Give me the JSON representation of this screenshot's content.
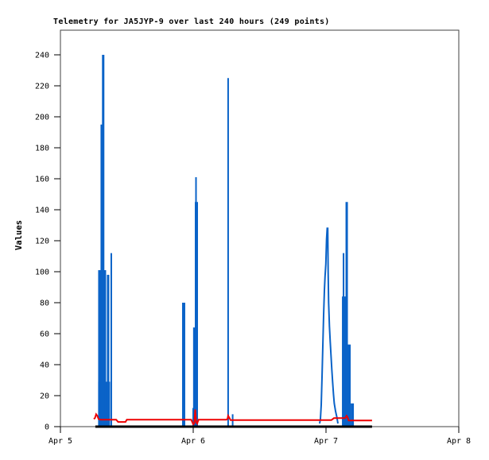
{
  "title": "Telemetry for JA5JYP-9 over last 240 hours (249 points)",
  "chart_data": {
    "type": "line",
    "subtype": "gnuplot-telemetry-impulses-and-lines",
    "title": "Telemetry for JA5JYP-9 over last 240 hours (249 points)",
    "xlabel": "",
    "ylabel": "Values",
    "grid": false,
    "legend_position": "none",
    "colors": {
      "impulse_blue": "#0a63c8",
      "line_red": "#ee0000",
      "line_black": "#000000",
      "border": "#404040",
      "text": "#000000",
      "background": "#ffffff"
    },
    "x_axis": {
      "tick_labels": [
        "Apr 5",
        "Apr 6",
        "Apr 7",
        "Apr 8"
      ],
      "tick_days": [
        0,
        1,
        2,
        3
      ],
      "range_days": [
        0,
        3
      ]
    },
    "y_axis": {
      "ticks": [
        0,
        20,
        40,
        60,
        80,
        100,
        120,
        140,
        160,
        180,
        200,
        220,
        240
      ],
      "range": [
        0,
        255
      ]
    },
    "series": [
      {
        "name": "blue-impulse-bars",
        "style": "impulses",
        "color_key": "impulse_blue",
        "comment": "bars as [days_after_Apr5, value, width_px]",
        "bars": [
          [
            0.329,
            29,
            15
          ],
          [
            0.314,
            101,
            10
          ],
          [
            0.314,
            195,
            4
          ],
          [
            0.322,
            240,
            3
          ],
          [
            0.359,
            98,
            3
          ],
          [
            0.383,
            112,
            2
          ],
          [
            0.928,
            80,
            4
          ],
          [
            1.017,
            64,
            6
          ],
          [
            1.024,
            145,
            4
          ],
          [
            1.021,
            161,
            2
          ],
          [
            1.0,
            12,
            2
          ],
          [
            1.263,
            225,
            2
          ],
          [
            1.297,
            8,
            2
          ],
          [
            2.138,
            84,
            6
          ],
          [
            2.132,
            112,
            2
          ],
          [
            2.156,
            145,
            3
          ],
          [
            2.171,
            53,
            5
          ],
          [
            2.198,
            15,
            4
          ]
        ]
      },
      {
        "name": "blue-peak-line",
        "style": "line",
        "color_key": "impulse_blue",
        "stroke_width": 2,
        "points": [
          [
            1.952,
            2
          ],
          [
            1.958,
            5
          ],
          [
            1.964,
            14
          ],
          [
            1.97,
            32
          ],
          [
            1.976,
            52
          ],
          [
            1.982,
            72
          ],
          [
            1.988,
            88
          ],
          [
            1.993,
            97
          ],
          [
            1.999,
            105
          ],
          [
            2.004,
            121
          ],
          [
            2.009,
            128
          ],
          [
            2.013,
            128
          ],
          [
            2.016,
            100
          ],
          [
            2.02,
            80
          ],
          [
            2.026,
            65
          ],
          [
            2.032,
            55
          ],
          [
            2.038,
            46
          ],
          [
            2.044,
            37
          ],
          [
            2.05,
            29
          ],
          [
            2.056,
            21
          ],
          [
            2.062,
            15
          ],
          [
            2.072,
            10
          ],
          [
            2.082,
            6
          ],
          [
            2.09,
            2
          ]
        ]
      },
      {
        "name": "red-channel-line",
        "style": "line",
        "color_key": "line_red",
        "stroke_width": 2,
        "points": [
          [
            0.251,
            5
          ],
          [
            0.26,
            5.5
          ],
          [
            0.269,
            8
          ],
          [
            0.278,
            7
          ],
          [
            0.287,
            5
          ],
          [
            0.3,
            4.5
          ],
          [
            0.42,
            4.5
          ],
          [
            0.435,
            3
          ],
          [
            0.49,
            3
          ],
          [
            0.5,
            4.5
          ],
          [
            0.985,
            4.5
          ],
          [
            1.0,
            1.5
          ],
          [
            1.008,
            2
          ],
          [
            1.015,
            11
          ],
          [
            1.022,
            3
          ],
          [
            1.03,
            2
          ],
          [
            1.04,
            4.5
          ],
          [
            1.25,
            4.5
          ],
          [
            1.258,
            5
          ],
          [
            1.263,
            7
          ],
          [
            1.27,
            6
          ],
          [
            1.281,
            4.2
          ],
          [
            2.04,
            4.2
          ],
          [
            2.06,
            5.5
          ],
          [
            2.13,
            5.5
          ],
          [
            2.145,
            5.5
          ],
          [
            2.155,
            7
          ],
          [
            2.163,
            6
          ],
          [
            2.17,
            4
          ],
          [
            2.347,
            4
          ]
        ]
      },
      {
        "name": "black-baseline",
        "style": "line",
        "color_key": "line_black",
        "stroke_width": 3,
        "points": [
          [
            0.263,
            0
          ],
          [
            2.347,
            0
          ]
        ]
      }
    ]
  }
}
